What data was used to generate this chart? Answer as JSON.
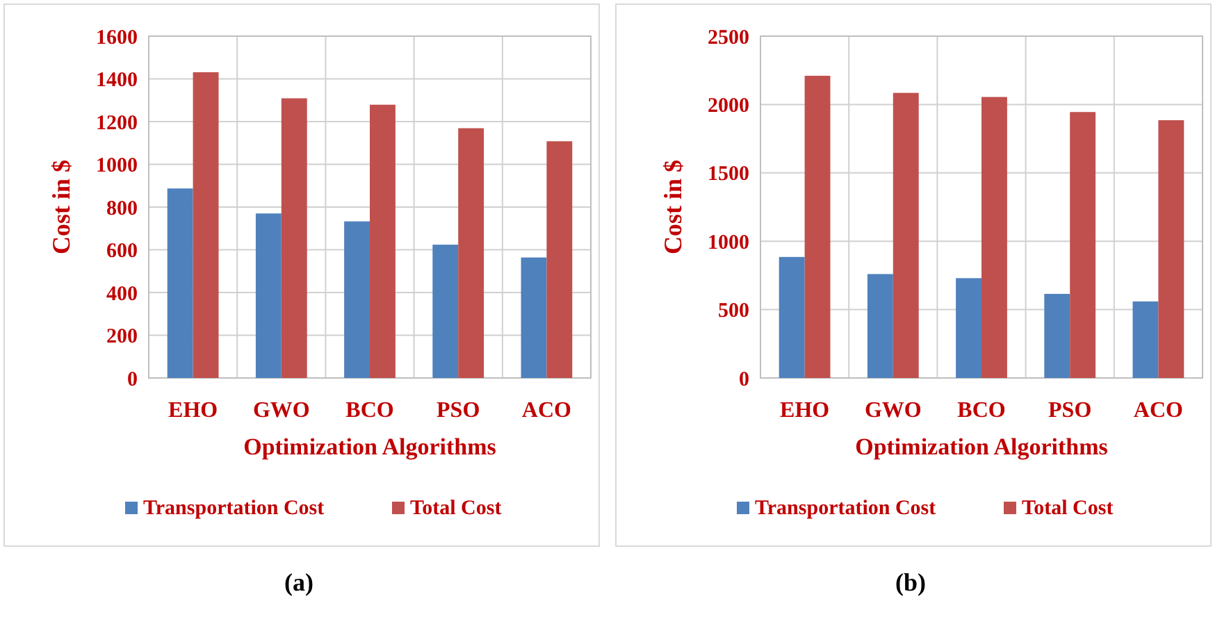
{
  "chart_data": [
    {
      "type": "bar",
      "xlabel": "Optimization Algorithms",
      "ylabel": "Cost in $",
      "categories": [
        "EHO",
        "GWO",
        "BCO",
        "PSO",
        "ACO"
      ],
      "series": [
        {
          "name": "Transportation Cost",
          "color": "#4f81bd",
          "values": [
            887,
            770,
            733,
            624,
            564
          ]
        },
        {
          "name": "Total Cost",
          "color": "#c0504d",
          "values": [
            1431,
            1309,
            1279,
            1169,
            1108
          ]
        }
      ],
      "ylim": [
        0,
        1600
      ],
      "yticks": [
        0,
        200,
        400,
        600,
        800,
        1000,
        1200,
        1400,
        1600
      ],
      "grid": true,
      "legend": "bottom",
      "annotations": [
        "(a)"
      ]
    },
    {
      "type": "bar",
      "xlabel": "Optimization Algorithms",
      "ylabel": "Cost in $",
      "categories": [
        "EHO",
        "GWO",
        "BCO",
        "PSO",
        "ACO"
      ],
      "series": [
        {
          "name": "Transportation Cost",
          "color": "#4f81bd",
          "values": [
            885,
            760,
            730,
            615,
            560
          ]
        },
        {
          "name": "Total Cost",
          "color": "#c0504d",
          "values": [
            2210,
            2085,
            2055,
            1945,
            1885
          ]
        }
      ],
      "ylim": [
        0,
        2500
      ],
      "yticks": [
        0,
        500,
        1000,
        1500,
        2000,
        2500
      ],
      "grid": true,
      "legend": "bottom",
      "annotations": [
        "(b)"
      ]
    }
  ]
}
